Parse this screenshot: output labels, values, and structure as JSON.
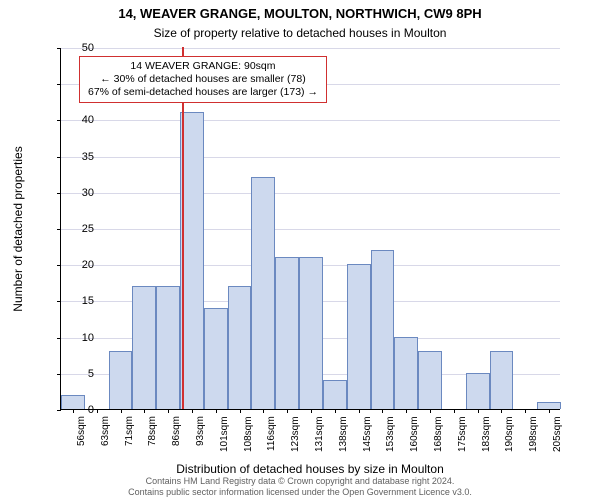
{
  "title_main": "14, WEAVER GRANGE, MOULTON, NORTHWICH, CW9 8PH",
  "title_sub": "Size of property relative to detached houses in Moulton",
  "title_fontsize": 13,
  "subtitle_fontsize": 12,
  "yaxis": {
    "label": "Number of detached properties",
    "min": 0,
    "max": 50,
    "step": 5,
    "fontsize": 12,
    "tick_fontsize": 11
  },
  "xaxis": {
    "label": "Distribution of detached houses by size in Moulton",
    "fontsize": 12,
    "tick_fontsize": 10,
    "tick_suffix": "sqm"
  },
  "grid": {
    "color": "#d8d8e8",
    "show": true
  },
  "bars": {
    "fill": "#cdd9ee",
    "border": "#6b89c0",
    "categories": [
      56,
      63,
      71,
      78,
      86,
      93,
      101,
      108,
      116,
      123,
      131,
      138,
      145,
      153,
      160,
      168,
      175,
      183,
      190,
      198,
      205
    ],
    "values": [
      2,
      0,
      8,
      17,
      17,
      41,
      14,
      17,
      32,
      21,
      21,
      4,
      20,
      22,
      10,
      8,
      0,
      5,
      8,
      0,
      1
    ]
  },
  "marker": {
    "x_value": 90,
    "color": "#d03030"
  },
  "annotation": {
    "lines": [
      "14 WEAVER GRANGE: 90sqm",
      "← 30% of detached houses are smaller (78)",
      "67% of semi-detached houses are larger (173) →"
    ],
    "fontsize": 10.5,
    "border_color": "#d03030",
    "background": "#ffffff"
  },
  "footer": {
    "line1": "Contains HM Land Registry data © Crown copyright and database right 2024.",
    "line2": "Contains public sector information licensed under the Open Government Licence v3.0.",
    "fontsize": 9,
    "color": "#606060"
  },
  "background_color": "#ffffff"
}
